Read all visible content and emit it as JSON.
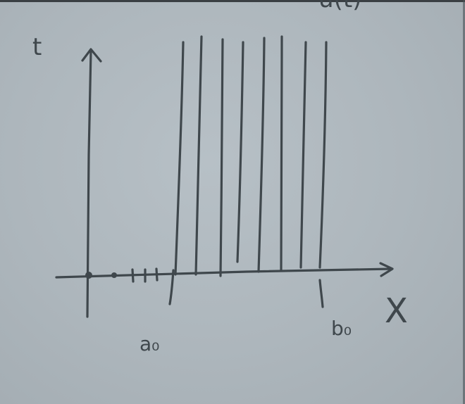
{
  "labels": {
    "t_axis": "t",
    "x_axis": "X",
    "left_bound": "a₀",
    "right_bound": "b₀",
    "top_fragment": "u(t)"
  },
  "colors": {
    "ink": "#3f474c",
    "board": "#aeb7bd"
  }
}
